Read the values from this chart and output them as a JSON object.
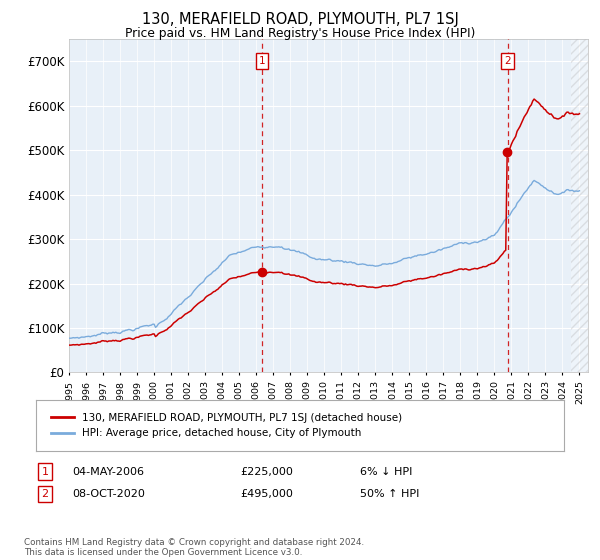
{
  "title": "130, MERAFIELD ROAD, PLYMOUTH, PL7 1SJ",
  "subtitle": "Price paid vs. HM Land Registry's House Price Index (HPI)",
  "hpi_color": "#7aabdc",
  "price_color": "#cc0000",
  "plot_bg": "#e8f0f8",
  "grid_color": "#ffffff",
  "ylim": [
    0,
    750000
  ],
  "yticks": [
    0,
    100000,
    200000,
    300000,
    400000,
    500000,
    600000,
    700000
  ],
  "ytick_labels": [
    "£0",
    "£100K",
    "£200K",
    "£300K",
    "£400K",
    "£500K",
    "£600K",
    "£700K"
  ],
  "xmin": 1995,
  "xmax": 2025.5,
  "sale1_date_num": 2006.35,
  "sale1_price": 225000,
  "sale2_date_num": 2020.77,
  "sale2_price": 495000,
  "hatch_start": 2024.5,
  "legend_label_price": "130, MERAFIELD ROAD, PLYMOUTH, PL7 1SJ (detached house)",
  "legend_label_hpi": "HPI: Average price, detached house, City of Plymouth",
  "ann1_label": "1",
  "ann1_date": "04-MAY-2006",
  "ann1_price_str": "£225,000",
  "ann1_hpi": "6% ↓ HPI",
  "ann2_label": "2",
  "ann2_date": "08-OCT-2020",
  "ann2_price_str": "£495,000",
  "ann2_hpi": "50% ↑ HPI",
  "footer": "Contains HM Land Registry data © Crown copyright and database right 2024.\nThis data is licensed under the Open Government Licence v3.0."
}
